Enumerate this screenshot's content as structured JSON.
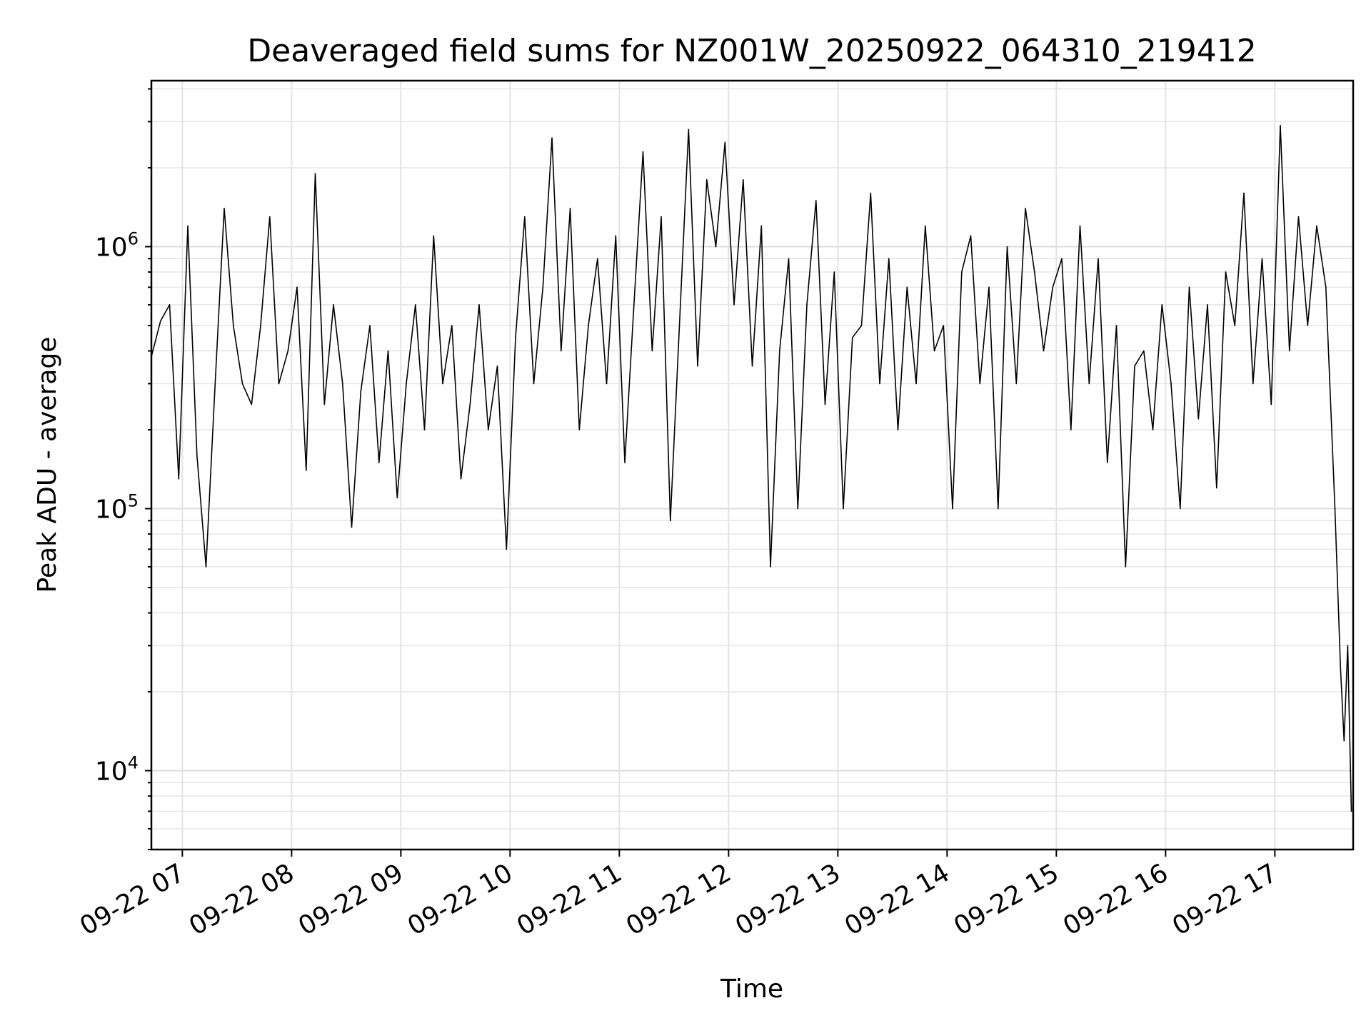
{
  "chart_data": {
    "type": "line",
    "title": "Deaveraged field sums for NZ001W_20250922_064310_219412",
    "xlabel": "Time",
    "ylabel": "Peak ADU - average",
    "y_scale": "log",
    "grid": true,
    "legend": "none",
    "x_ticks": [
      "09-22 07",
      "09-22 08",
      "09-22 09",
      "09-22 10",
      "09-22 11",
      "09-22 12",
      "09-22 13",
      "09-22 14",
      "09-22 15",
      "09-22 16",
      "09-22 17"
    ],
    "y_ticks": [
      {
        "value": 10000,
        "base": "10",
        "exp": "4"
      },
      {
        "value": 100000,
        "base": "10",
        "exp": "5"
      },
      {
        "value": 1000000,
        "base": "10",
        "exp": "6"
      }
    ],
    "xlim": [
      "2025-09-22 06:43",
      "2025-09-22 17:43"
    ],
    "ylim": [
      5000,
      4300000
    ],
    "series": [
      {
        "color": "#000000",
        "x": [
          "2025-09-22 06:43",
          "2025-09-22 06:48",
          "2025-09-22 06:53",
          "2025-09-22 06:58",
          "2025-09-22 07:03",
          "2025-09-22 07:08",
          "2025-09-22 07:13",
          "2025-09-22 07:18",
          "2025-09-22 07:23",
          "2025-09-22 07:28",
          "2025-09-22 07:33",
          "2025-09-22 07:38",
          "2025-09-22 07:43",
          "2025-09-22 07:48",
          "2025-09-22 07:53",
          "2025-09-22 07:58",
          "2025-09-22 08:03",
          "2025-09-22 08:08",
          "2025-09-22 08:13",
          "2025-09-22 08:18",
          "2025-09-22 08:23",
          "2025-09-22 08:28",
          "2025-09-22 08:33",
          "2025-09-22 08:38",
          "2025-09-22 08:43",
          "2025-09-22 08:48",
          "2025-09-22 08:53",
          "2025-09-22 08:58",
          "2025-09-22 09:03",
          "2025-09-22 09:08",
          "2025-09-22 09:13",
          "2025-09-22 09:18",
          "2025-09-22 09:23",
          "2025-09-22 09:28",
          "2025-09-22 09:33",
          "2025-09-22 09:38",
          "2025-09-22 09:43",
          "2025-09-22 09:48",
          "2025-09-22 09:53",
          "2025-09-22 09:58",
          "2025-09-22 10:03",
          "2025-09-22 10:08",
          "2025-09-22 10:13",
          "2025-09-22 10:18",
          "2025-09-22 10:23",
          "2025-09-22 10:28",
          "2025-09-22 10:33",
          "2025-09-22 10:38",
          "2025-09-22 10:43",
          "2025-09-22 10:48",
          "2025-09-22 10:53",
          "2025-09-22 10:58",
          "2025-09-22 11:03",
          "2025-09-22 11:08",
          "2025-09-22 11:13",
          "2025-09-22 11:18",
          "2025-09-22 11:23",
          "2025-09-22 11:28",
          "2025-09-22 11:33",
          "2025-09-22 11:38",
          "2025-09-22 11:43",
          "2025-09-22 11:48",
          "2025-09-22 11:53",
          "2025-09-22 11:58",
          "2025-09-22 12:03",
          "2025-09-22 12:08",
          "2025-09-22 12:13",
          "2025-09-22 12:18",
          "2025-09-22 12:23",
          "2025-09-22 12:28",
          "2025-09-22 12:33",
          "2025-09-22 12:38",
          "2025-09-22 12:43",
          "2025-09-22 12:48",
          "2025-09-22 12:53",
          "2025-09-22 12:58",
          "2025-09-22 13:03",
          "2025-09-22 13:08",
          "2025-09-22 13:13",
          "2025-09-22 13:18",
          "2025-09-22 13:23",
          "2025-09-22 13:28",
          "2025-09-22 13:33",
          "2025-09-22 13:38",
          "2025-09-22 13:43",
          "2025-09-22 13:48",
          "2025-09-22 13:53",
          "2025-09-22 13:58",
          "2025-09-22 14:03",
          "2025-09-22 14:08",
          "2025-09-22 14:13",
          "2025-09-22 14:18",
          "2025-09-22 14:23",
          "2025-09-22 14:28",
          "2025-09-22 14:33",
          "2025-09-22 14:38",
          "2025-09-22 14:43",
          "2025-09-22 14:48",
          "2025-09-22 14:53",
          "2025-09-22 14:58",
          "2025-09-22 15:03",
          "2025-09-22 15:08",
          "2025-09-22 15:13",
          "2025-09-22 15:18",
          "2025-09-22 15:23",
          "2025-09-22 15:28",
          "2025-09-22 15:33",
          "2025-09-22 15:38",
          "2025-09-22 15:43",
          "2025-09-22 15:48",
          "2025-09-22 15:53",
          "2025-09-22 15:58",
          "2025-09-22 16:03",
          "2025-09-22 16:08",
          "2025-09-22 16:13",
          "2025-09-22 16:18",
          "2025-09-22 16:23",
          "2025-09-22 16:28",
          "2025-09-22 16:33",
          "2025-09-22 16:38",
          "2025-09-22 16:43",
          "2025-09-22 16:48",
          "2025-09-22 16:53",
          "2025-09-22 16:58",
          "2025-09-22 17:03",
          "2025-09-22 17:08",
          "2025-09-22 17:13",
          "2025-09-22 17:18",
          "2025-09-22 17:23",
          "2025-09-22 17:28",
          "2025-09-22 17:33",
          "2025-09-22 17:36",
          "2025-09-22 17:38",
          "2025-09-22 17:40",
          "2025-09-22 17:42"
        ],
        "y": [
          380000,
          520000,
          600000,
          130000,
          1200000,
          160000,
          60000,
          300000,
          1400000,
          500000,
          300000,
          250000,
          500000,
          1300000,
          300000,
          400000,
          700000,
          140000,
          1900000,
          250000,
          600000,
          300000,
          85000,
          280000,
          500000,
          150000,
          400000,
          110000,
          300000,
          600000,
          200000,
          1100000,
          300000,
          500000,
          130000,
          250000,
          600000,
          200000,
          350000,
          70000,
          450000,
          1300000,
          300000,
          700000,
          2600000,
          400000,
          1400000,
          200000,
          500000,
          900000,
          300000,
          1100000,
          150000,
          600000,
          2300000,
          400000,
          1300000,
          90000,
          500000,
          2800000,
          350000,
          1800000,
          1000000,
          2500000,
          600000,
          1800000,
          350000,
          1200000,
          60000,
          400000,
          900000,
          100000,
          600000,
          1500000,
          250000,
          800000,
          100000,
          450000,
          500000,
          1600000,
          300000,
          900000,
          200000,
          700000,
          300000,
          1200000,
          400000,
          500000,
          100000,
          800000,
          1100000,
          300000,
          700000,
          100000,
          1000000,
          300000,
          1400000,
          800000,
          400000,
          700000,
          900000,
          200000,
          1200000,
          300000,
          900000,
          150000,
          500000,
          60000,
          350000,
          400000,
          200000,
          600000,
          300000,
          100000,
          700000,
          220000,
          600000,
          120000,
          800000,
          500000,
          1600000,
          300000,
          900000,
          250000,
          2900000,
          400000,
          1300000,
          500000,
          1200000,
          700000,
          100000,
          25000,
          13000,
          30000,
          7000
        ]
      }
    ]
  }
}
